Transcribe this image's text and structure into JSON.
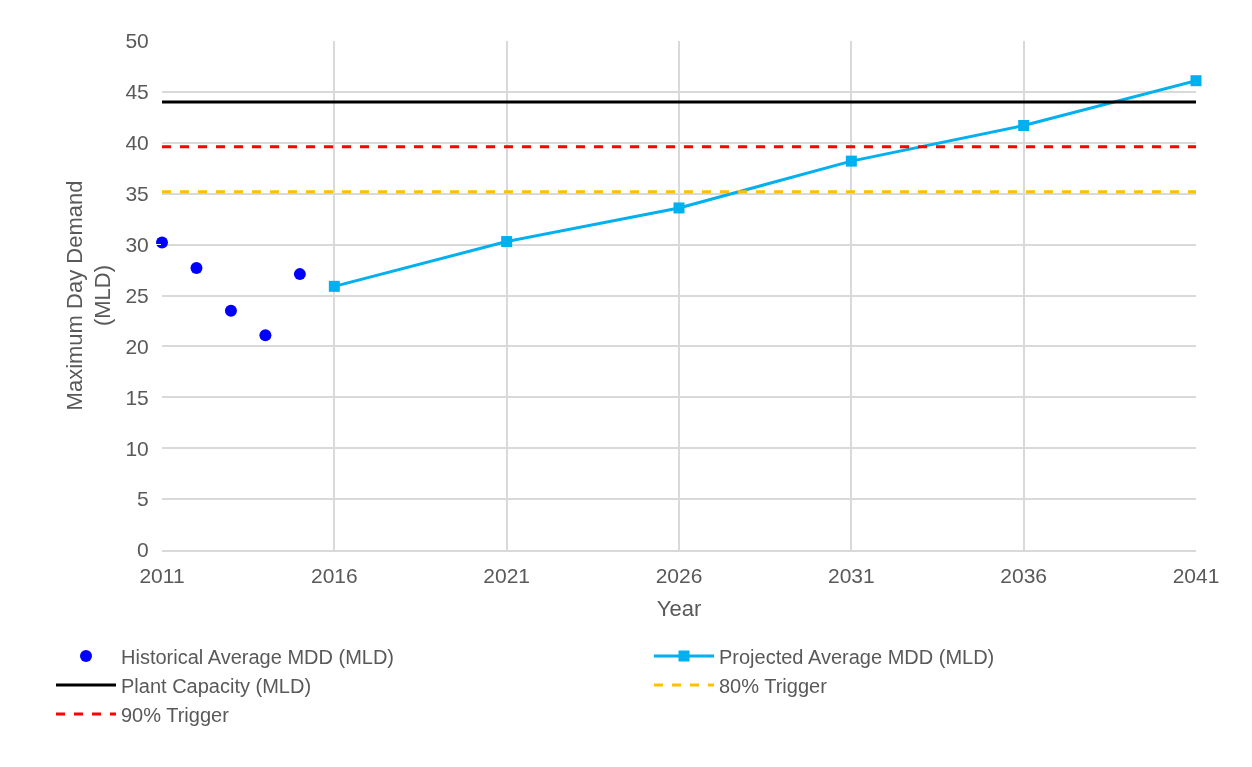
{
  "chart_data": {
    "type": "scatter",
    "xlabel": "Year",
    "ylabel": "Maximum Day Demand\n(MLD)",
    "xlim": [
      2011,
      2041
    ],
    "xticks": [
      2011,
      2016,
      2021,
      2026,
      2031,
      2036,
      2041
    ],
    "ylim": [
      0,
      50
    ],
    "yticks": [
      0,
      5,
      10,
      15,
      20,
      25,
      30,
      35,
      40,
      45,
      50
    ],
    "grid": true,
    "legend": "bottom",
    "series": [
      {
        "name": "Historical Average MDD (MLD)",
        "marker": "circle",
        "color": "#0000ff",
        "x": [
          2011,
          2012,
          2013,
          2014,
          2015
        ],
        "values": [
          30.2,
          27.7,
          23.5,
          21.1,
          27.1
        ]
      },
      {
        "name": "Projected Average MDD (MLD)",
        "type": "line",
        "marker": "square",
        "line_style": "solid",
        "color": "#00b0f0",
        "x": [
          2016,
          2021,
          2026,
          2031,
          2036,
          2041
        ],
        "values": [
          25.9,
          30.3,
          33.6,
          38.2,
          41.7,
          46.1
        ]
      },
      {
        "name": "Plant Capacity (MLD)",
        "type": "line",
        "marker": "none",
        "line_style": "solid",
        "color": "#000000",
        "x": [
          2011,
          2041
        ],
        "values": [
          44,
          44
        ]
      },
      {
        "name": "80% Trigger",
        "type": "line",
        "marker": "none",
        "line_style": "dashed",
        "color": "#ffc000",
        "x": [
          2011,
          2041
        ],
        "values": [
          35.2,
          35.2
        ]
      },
      {
        "name": "90% Trigger",
        "type": "line",
        "marker": "none",
        "line_style": "dashed",
        "color": "#ff0000",
        "x": [
          2011,
          2041
        ],
        "values": [
          39.6,
          39.6
        ]
      }
    ]
  }
}
